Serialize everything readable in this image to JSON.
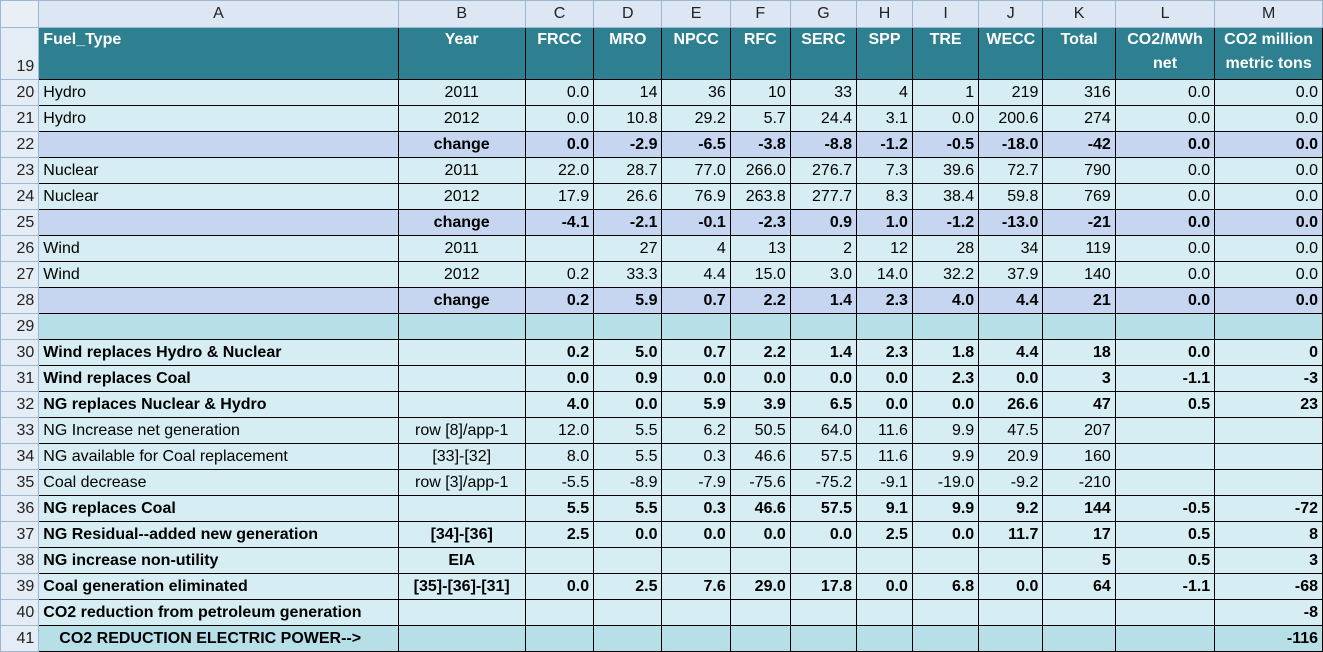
{
  "column_letters": [
    "A",
    "B",
    "C",
    "D",
    "E",
    "F",
    "G",
    "H",
    "I",
    "J",
    "K",
    "L",
    "M"
  ],
  "header_row": {
    "row_number": "19",
    "cells": [
      "Fuel_Type",
      "Year",
      "FRCC",
      "MRO",
      "NPCC",
      "RFC",
      "SERC",
      "SPP",
      "TRE",
      "WECC",
      "Total",
      "CO2/MWh net",
      "CO2 million metric tons"
    ]
  },
  "rows": [
    {
      "n": "20",
      "style": "normal",
      "cells": [
        "Hydro",
        "2011",
        "0.0",
        "14",
        "36",
        "10",
        "33",
        "4",
        "1",
        "219",
        "316",
        "0.0",
        "0.0"
      ]
    },
    {
      "n": "21",
      "style": "normal",
      "cells": [
        "Hydro",
        "2012",
        "0.0",
        "10.8",
        "29.2",
        "5.7",
        "24.4",
        "3.1",
        "0.0",
        "200.6",
        "274",
        "0.0",
        "0.0"
      ]
    },
    {
      "n": "22",
      "style": "chg",
      "cells": [
        "",
        "change",
        "0.0",
        "-2.9",
        "-6.5",
        "-3.8",
        "-8.8",
        "-1.2",
        "-0.5",
        "-18.0",
        "-42",
        "0.0",
        "0.0"
      ]
    },
    {
      "n": "23",
      "style": "normal",
      "cells": [
        "Nuclear",
        "2011",
        "22.0",
        "28.7",
        "77.0",
        "266.0",
        "276.7",
        "7.3",
        "39.6",
        "72.7",
        "790",
        "0.0",
        "0.0"
      ]
    },
    {
      "n": "24",
      "style": "normal",
      "cells": [
        "Nuclear",
        "2012",
        "17.9",
        "26.6",
        "76.9",
        "263.8",
        "277.7",
        "8.3",
        "38.4",
        "59.8",
        "769",
        "0.0",
        "0.0"
      ]
    },
    {
      "n": "25",
      "style": "chg",
      "cells": [
        "",
        "change",
        "-4.1",
        "-2.1",
        "-0.1",
        "-2.3",
        "0.9",
        "1.0",
        "-1.2",
        "-13.0",
        "-21",
        "0.0",
        "0.0"
      ]
    },
    {
      "n": "26",
      "style": "normal",
      "cells": [
        "Wind",
        "2011",
        "",
        "27",
        "4",
        "13",
        "2",
        "12",
        "28",
        "34",
        "119",
        "0.0",
        "0.0"
      ]
    },
    {
      "n": "27",
      "style": "normal",
      "cells": [
        "Wind",
        "2012",
        "0.2",
        "33.3",
        "4.4",
        "15.0",
        "3.0",
        "14.0",
        "32.2",
        "37.9",
        "140",
        "0.0",
        "0.0"
      ]
    },
    {
      "n": "28",
      "style": "chg",
      "cells": [
        "",
        "change",
        "0.2",
        "5.9",
        "0.7",
        "2.2",
        "1.4",
        "2.3",
        "4.0",
        "4.4",
        "21",
        "0.0",
        "0.0"
      ]
    },
    {
      "n": "29",
      "style": "blank",
      "cells": [
        "",
        "",
        "",
        "",
        "",
        "",
        "",
        "",
        "",
        "",
        "",
        "",
        ""
      ]
    },
    {
      "n": "30",
      "style": "bold",
      "cells": [
        "Wind replaces Hydro & Nuclear",
        "",
        "0.2",
        "5.0",
        "0.7",
        "2.2",
        "1.4",
        "2.3",
        "1.8",
        "4.4",
        "18",
        "0.0",
        "0"
      ]
    },
    {
      "n": "31",
      "style": "bold",
      "cells": [
        "Wind replaces Coal",
        "",
        "0.0",
        "0.9",
        "0.0",
        "0.0",
        "0.0",
        "0.0",
        "2.3",
        "0.0",
        "3",
        "-1.1",
        "-3"
      ]
    },
    {
      "n": "32",
      "style": "bold",
      "cells": [
        "NG replaces Nuclear & Hydro",
        "",
        "4.0",
        "0.0",
        "5.9",
        "3.9",
        "6.5",
        "0.0",
        "0.0",
        "26.6",
        "47",
        "0.5",
        "23"
      ]
    },
    {
      "n": "33",
      "style": "normal",
      "cells": [
        "NG Increase net generation",
        "row [8]/app-1",
        "12.0",
        "5.5",
        "6.2",
        "50.5",
        "64.0",
        "11.6",
        "9.9",
        "47.5",
        "207",
        "",
        ""
      ]
    },
    {
      "n": "34",
      "style": "normal",
      "cells": [
        "NG available for Coal replacement",
        "[33]-[32]",
        "8.0",
        "5.5",
        "0.3",
        "46.6",
        "57.5",
        "11.6",
        "9.9",
        "20.9",
        "160",
        "",
        ""
      ]
    },
    {
      "n": "35",
      "style": "normal",
      "cells": [
        "Coal decrease",
        "row [3]/app-1",
        "-5.5",
        "-8.9",
        "-7.9",
        "-75.6",
        "-75.2",
        "-9.1",
        "-19.0",
        "-9.2",
        "-210",
        "",
        ""
      ]
    },
    {
      "n": "36",
      "style": "bold",
      "cells": [
        "NG replaces Coal",
        "",
        "5.5",
        "5.5",
        "0.3",
        "46.6",
        "57.5",
        "9.1",
        "9.9",
        "9.2",
        "144",
        "-0.5",
        "-72"
      ]
    },
    {
      "n": "37",
      "style": "bold",
      "cells": [
        "NG Residual--added new generation",
        "[34]-[36]",
        "2.5",
        "0.0",
        "0.0",
        "0.0",
        "0.0",
        "2.5",
        "0.0",
        "11.7",
        "17",
        "0.5",
        "8"
      ]
    },
    {
      "n": "38",
      "style": "bold",
      "cells": [
        "NG increase non-utility",
        "EIA",
        "",
        "",
        "",
        "",
        "",
        "",
        "",
        "",
        "5",
        "0.5",
        "3"
      ]
    },
    {
      "n": "39",
      "style": "bold",
      "cells": [
        "Coal generation eliminated",
        "[35]-[36]-[31]",
        "0.0",
        "2.5",
        "7.6",
        "29.0",
        "17.8",
        "0.0",
        "6.8",
        "0.0",
        "64",
        "-1.1",
        "-68"
      ]
    },
    {
      "n": "40",
      "style": "bold",
      "cells": [
        "CO2 reduction from petroleum generation",
        "",
        "",
        "",
        "",
        "",
        "",
        "",
        "",
        "",
        "",
        "",
        "-8"
      ]
    },
    {
      "n": "41",
      "style": "final",
      "cells": [
        "CO2 REDUCTION ELECTRIC POWER-->",
        "",
        "",
        "",
        "",
        "",
        "",
        "",
        "",
        "",
        "",
        "",
        "-116"
      ]
    }
  ],
  "colors": {
    "header_fill": "#2e7f8f",
    "body_fill": "#d6eef3",
    "change_fill": "#c6d6f1",
    "blank_fill": "#b7dfe8",
    "gridline": "#000000"
  }
}
